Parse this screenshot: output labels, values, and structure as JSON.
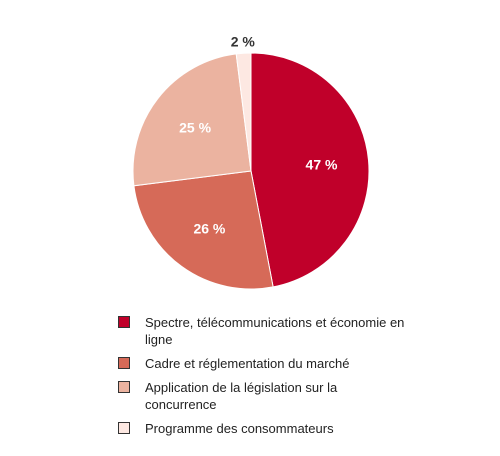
{
  "chart_data": {
    "type": "pie",
    "start": "12 o'clock",
    "direction": "clockwise",
    "slices": [
      {
        "label": "Spectre, télécommunications et économie en ligne",
        "value": 47,
        "value_label": "47 %",
        "color": "#c0002a"
      },
      {
        "label": "Cadre et réglementation du marché",
        "value": 26,
        "value_label": "26 %",
        "color": "#d66a58"
      },
      {
        "label": "Application de la législation sur la concurrence",
        "value": 25,
        "value_label": "25 %",
        "color": "#ebb3a0"
      },
      {
        "label": "Programme des consommateurs",
        "value": 2,
        "value_label": "2 %",
        "color": "#fde8e2"
      }
    ],
    "legend": "bottom"
  }
}
